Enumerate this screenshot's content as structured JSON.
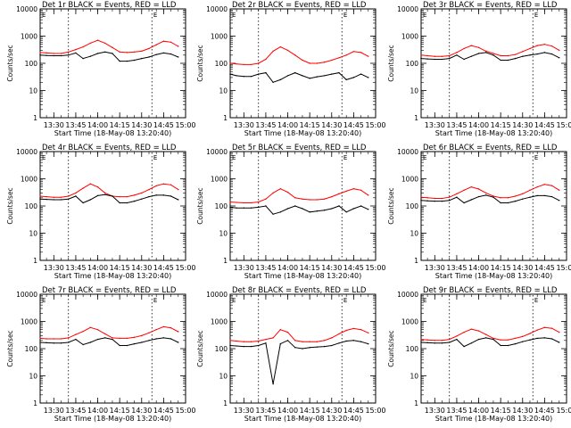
{
  "figure": {
    "xlabel": "Start Time (18-May-08 13:20:40)",
    "ylabel": "Counts/sec",
    "x_ticks": [
      "13:30",
      "13:45",
      "14:00",
      "14:15",
      "14:30",
      "14:45",
      "15:00"
    ],
    "y_ticks": [
      "1",
      "10",
      "100",
      "1000",
      "10000"
    ],
    "colors": {
      "events": "#000000",
      "lld": "#ff0000"
    }
  },
  "chart_data": [
    {
      "type": "line",
      "title": "Det 1r BLACK = Events, RED = LLD",
      "x": [
        "13:20",
        "13:25",
        "13:30",
        "13:35",
        "13:40",
        "13:45",
        "13:50",
        "13:55",
        "14:00",
        "14:05",
        "14:10",
        "14:15",
        "14:20",
        "14:25",
        "14:30",
        "14:35",
        "14:40",
        "14:45",
        "14:50",
        "14:55"
      ],
      "series": [
        {
          "name": "Events",
          "color": "#000000",
          "values": [
            200,
            195,
            190,
            190,
            200,
            240,
            150,
            180,
            230,
            260,
            230,
            120,
            120,
            130,
            150,
            170,
            210,
            240,
            220,
            170
          ]
        },
        {
          "name": "LLD",
          "color": "#ff0000",
          "values": [
            250,
            240,
            230,
            230,
            260,
            320,
            400,
            550,
            700,
            550,
            380,
            260,
            250,
            260,
            280,
            350,
            480,
            650,
            600,
            420
          ]
        }
      ],
      "ylim": [
        1,
        10000
      ],
      "yscale": "log",
      "annotations": [
        "dotted vertical line near 13:40",
        "dotted vertical line near 14:37",
        "marker E near 14:38"
      ]
    },
    {
      "type": "line",
      "title": "Det 2r BLACK = Events, RED = LLD",
      "x": [
        "13:20",
        "13:25",
        "13:30",
        "13:35",
        "13:40",
        "13:45",
        "13:50",
        "13:55",
        "14:00",
        "14:05",
        "14:10",
        "14:15",
        "14:20",
        "14:25",
        "14:30",
        "14:35",
        "14:40",
        "14:45",
        "14:50",
        "14:55"
      ],
      "series": [
        {
          "name": "Events",
          "color": "#000000",
          "values": [
            40,
            35,
            33,
            33,
            40,
            45,
            20,
            25,
            35,
            45,
            35,
            28,
            32,
            35,
            40,
            45,
            25,
            30,
            40,
            30
          ]
        },
        {
          "name": "LLD",
          "color": "#ff0000",
          "values": [
            100,
            95,
            90,
            90,
            100,
            140,
            280,
            400,
            300,
            200,
            130,
            100,
            100,
            110,
            130,
            160,
            200,
            270,
            250,
            180
          ]
        }
      ],
      "ylim": [
        1,
        10000
      ],
      "yscale": "log",
      "annotations": [
        "dotted vertical line near 13:40",
        "dotted vertical line near 14:37",
        "marker E near 14:38"
      ]
    },
    {
      "type": "line",
      "title": "Det 3r BLACK = Events, RED = LLD",
      "x": [
        "13:20",
        "13:25",
        "13:30",
        "13:35",
        "13:40",
        "13:45",
        "13:50",
        "13:55",
        "14:00",
        "14:05",
        "14:10",
        "14:15",
        "14:20",
        "14:25",
        "14:30",
        "14:35",
        "14:40",
        "14:45",
        "14:50",
        "14:55"
      ],
      "series": [
        {
          "name": "Events",
          "color": "#000000",
          "values": [
            150,
            145,
            140,
            140,
            150,
            200,
            140,
            180,
            230,
            250,
            200,
            130,
            130,
            150,
            180,
            200,
            220,
            250,
            220,
            160
          ]
        },
        {
          "name": "LLD",
          "color": "#ff0000",
          "values": [
            200,
            190,
            180,
            180,
            190,
            250,
            350,
            450,
            380,
            280,
            230,
            190,
            190,
            210,
            270,
            350,
            450,
            500,
            430,
            300
          ]
        }
      ],
      "ylim": [
        1,
        10000
      ],
      "yscale": "log",
      "annotations": [
        "dotted vertical line near 13:40",
        "dotted vertical line near 14:37",
        "marker E near 14:38"
      ]
    },
    {
      "type": "line",
      "title": "Det 4r BLACK = Events, RED = LLD",
      "x": [
        "13:20",
        "13:25",
        "13:30",
        "13:35",
        "13:40",
        "13:45",
        "13:50",
        "13:55",
        "14:00",
        "14:05",
        "14:10",
        "14:15",
        "14:20",
        "14:25",
        "14:30",
        "14:35",
        "14:40",
        "14:45",
        "14:50",
        "14:55"
      ],
      "series": [
        {
          "name": "Events",
          "color": "#000000",
          "values": [
            180,
            175,
            170,
            170,
            180,
            230,
            130,
            170,
            240,
            260,
            230,
            130,
            130,
            150,
            180,
            220,
            250,
            250,
            230,
            170
          ]
        },
        {
          "name": "LLD",
          "color": "#ff0000",
          "values": [
            230,
            220,
            210,
            210,
            230,
            300,
            450,
            650,
            500,
            300,
            230,
            220,
            220,
            250,
            300,
            400,
            550,
            650,
            600,
            400
          ]
        }
      ],
      "ylim": [
        1,
        10000
      ],
      "yscale": "log",
      "annotations": [
        "dotted vertical line near 13:40",
        "dotted vertical line near 14:37",
        "marker E near 14:38"
      ]
    },
    {
      "type": "line",
      "title": "Det 5r BLACK = Events, RED = LLD",
      "x": [
        "13:20",
        "13:25",
        "13:30",
        "13:35",
        "13:40",
        "13:45",
        "13:50",
        "13:55",
        "14:00",
        "14:05",
        "14:10",
        "14:15",
        "14:20",
        "14:25",
        "14:30",
        "14:35",
        "14:40",
        "14:45",
        "14:50",
        "14:55"
      ],
      "series": [
        {
          "name": "Events",
          "color": "#000000",
          "values": [
            90,
            85,
            85,
            85,
            90,
            100,
            50,
            60,
            80,
            100,
            80,
            60,
            65,
            70,
            80,
            100,
            60,
            80,
            100,
            75
          ]
        },
        {
          "name": "LLD",
          "color": "#ff0000",
          "values": [
            140,
            135,
            130,
            130,
            140,
            180,
            300,
            430,
            320,
            200,
            180,
            170,
            170,
            180,
            220,
            280,
            350,
            430,
            380,
            250
          ]
        }
      ],
      "ylim": [
        1,
        10000
      ],
      "yscale": "log",
      "annotations": [
        "dotted vertical line near 13:40",
        "dotted vertical line near 14:37",
        "marker E near 14:38"
      ]
    },
    {
      "type": "line",
      "title": "Det 6r BLACK = Events, RED = LLD",
      "x": [
        "13:20",
        "13:25",
        "13:30",
        "13:35",
        "13:40",
        "13:45",
        "13:50",
        "13:55",
        "14:00",
        "14:05",
        "14:10",
        "14:15",
        "14:20",
        "14:25",
        "14:30",
        "14:35",
        "14:40",
        "14:45",
        "14:50",
        "14:55"
      ],
      "series": [
        {
          "name": "Events",
          "color": "#000000",
          "values": [
            160,
            155,
            150,
            150,
            160,
            210,
            130,
            170,
            220,
            250,
            210,
            130,
            130,
            150,
            180,
            210,
            240,
            240,
            220,
            160
          ]
        },
        {
          "name": "LLD",
          "color": "#ff0000",
          "values": [
            210,
            200,
            190,
            190,
            210,
            280,
            380,
            500,
            420,
            300,
            230,
            200,
            200,
            230,
            280,
            380,
            500,
            620,
            560,
            380
          ]
        }
      ],
      "ylim": [
        1,
        10000
      ],
      "yscale": "log",
      "annotations": [
        "dotted vertical line near 13:40",
        "dotted vertical line near 14:37",
        "marker E near 14:38"
      ]
    },
    {
      "type": "line",
      "title": "Det 7r BLACK = Events, RED = LLD",
      "x": [
        "13:20",
        "13:25",
        "13:30",
        "13:35",
        "13:40",
        "13:45",
        "13:50",
        "13:55",
        "14:00",
        "14:05",
        "14:10",
        "14:15",
        "14:20",
        "14:25",
        "14:30",
        "14:35",
        "14:40",
        "14:45",
        "14:50",
        "14:55"
      ],
      "series": [
        {
          "name": "Events",
          "color": "#000000",
          "values": [
            170,
            165,
            160,
            160,
            170,
            220,
            140,
            170,
            220,
            250,
            220,
            130,
            130,
            150,
            170,
            200,
            230,
            250,
            230,
            170
          ]
        },
        {
          "name": "LLD",
          "color": "#ff0000",
          "values": [
            240,
            230,
            230,
            230,
            250,
            330,
            430,
            600,
            500,
            350,
            250,
            240,
            240,
            260,
            300,
            380,
            500,
            640,
            580,
            420
          ]
        }
      ],
      "ylim": [
        1,
        10000
      ],
      "yscale": "log",
      "annotations": [
        "dotted vertical line near 13:40",
        "dotted vertical line near 14:37",
        "marker E near 14:38"
      ]
    },
    {
      "type": "line",
      "title": "Det 8r BLACK = Events, RED = LLD",
      "x": [
        "13:20",
        "13:25",
        "13:30",
        "13:35",
        "13:40",
        "13:45",
        "13:50",
        "13:55",
        "14:00",
        "14:05",
        "14:10",
        "14:15",
        "14:20",
        "14:25",
        "14:30",
        "14:35",
        "14:40",
        "14:45",
        "14:50",
        "14:55"
      ],
      "series": [
        {
          "name": "Events",
          "color": "#000000",
          "values": [
            130,
            125,
            120,
            120,
            130,
            160,
            5,
            150,
            200,
            110,
            100,
            110,
            115,
            120,
            130,
            160,
            190,
            200,
            180,
            150
          ]
        },
        {
          "name": "LLD",
          "color": "#ff0000",
          "values": [
            200,
            190,
            180,
            180,
            190,
            220,
            250,
            500,
            400,
            200,
            180,
            180,
            180,
            200,
            250,
            350,
            470,
            550,
            500,
            380
          ]
        }
      ],
      "ylim": [
        1,
        10000
      ],
      "yscale": "log",
      "annotations": [
        "dotted vertical line near 13:40",
        "dotted vertical line near 14:37",
        "marker E near 14:38",
        "sharp spikes between 13:45 and 14:05"
      ]
    },
    {
      "type": "line",
      "title": "Det 9r BLACK = Events, RED = LLD",
      "x": [
        "13:20",
        "13:25",
        "13:30",
        "13:35",
        "13:40",
        "13:45",
        "13:50",
        "13:55",
        "14:00",
        "14:05",
        "14:10",
        "14:15",
        "14:20",
        "14:25",
        "14:30",
        "14:35",
        "14:40",
        "14:45",
        "14:50",
        "14:55"
      ],
      "series": [
        {
          "name": "Events",
          "color": "#000000",
          "values": [
            170,
            165,
            160,
            160,
            170,
            220,
            120,
            160,
            220,
            250,
            220,
            130,
            130,
            150,
            180,
            210,
            240,
            250,
            230,
            170
          ]
        },
        {
          "name": "LLD",
          "color": "#ff0000",
          "values": [
            220,
            210,
            200,
            200,
            220,
            290,
            400,
            520,
            450,
            330,
            240,
            210,
            210,
            240,
            280,
            360,
            480,
            600,
            560,
            400
          ]
        }
      ],
      "ylim": [
        1,
        10000
      ],
      "yscale": "log",
      "annotations": [
        "dotted vertical line near 13:40",
        "dotted vertical line near 14:37",
        "marker E near 14:38"
      ]
    }
  ]
}
